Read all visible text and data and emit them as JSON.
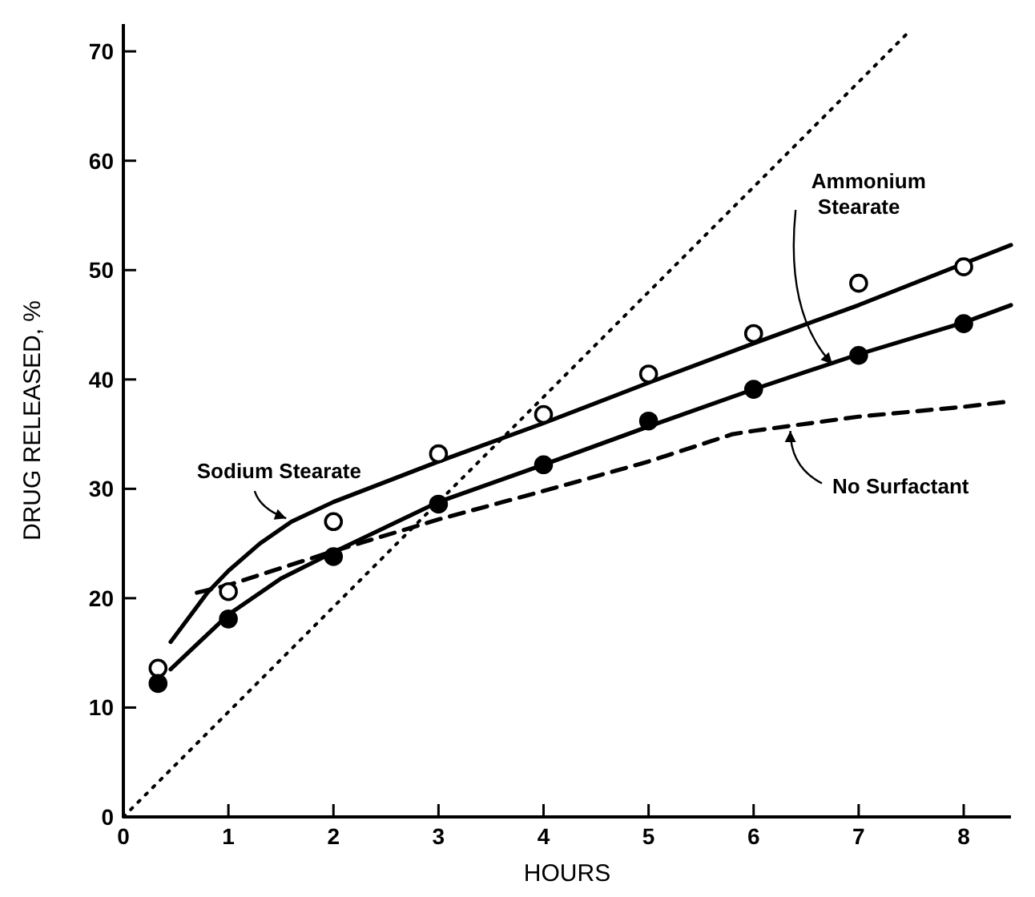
{
  "chart_data": {
    "type": "line",
    "xlabel": "HOURS",
    "ylabel": "DRUG RELEASED, %",
    "xlim": [
      0,
      8.45
    ],
    "ylim": [
      0,
      72.5
    ],
    "xticks": [
      0,
      1,
      2,
      3,
      4,
      5,
      6,
      7,
      8
    ],
    "yticks": [
      0,
      10,
      20,
      30,
      40,
      50,
      60,
      70
    ],
    "grid": false,
    "series": [
      {
        "name": "Sodium Stearate",
        "color": "#000000",
        "line_style": "solid",
        "x": [
          0.45,
          0.8,
          1,
          1.3,
          1.6,
          2,
          3,
          4,
          5,
          6,
          7,
          8,
          8.45
        ],
        "values": [
          16,
          20.5,
          22.5,
          25,
          27,
          28.8,
          32.5,
          36,
          39.7,
          43.3,
          46.8,
          50.6,
          52.3
        ]
      },
      {
        "name": "Ammonium Stearate",
        "color": "#000000",
        "line_style": "solid",
        "x": [
          0.45,
          1,
          1.5,
          2,
          3,
          4,
          5,
          6,
          7,
          8,
          8.45
        ],
        "values": [
          13.5,
          18.5,
          21.8,
          24.2,
          28.8,
          32.2,
          35.7,
          39.1,
          42.3,
          45.2,
          46.8
        ]
      },
      {
        "name": "No Surfactant",
        "color": "#000000",
        "line_style": "dashed",
        "x": [
          0.7,
          1,
          2,
          3,
          4,
          5,
          5.8,
          6,
          7,
          8,
          8.45
        ],
        "values": [
          20.5,
          21.2,
          24.3,
          27.2,
          29.8,
          32.5,
          35,
          35.3,
          36.6,
          37.5,
          38
        ]
      },
      {
        "color": "#000000",
        "line_style": "dotted",
        "x": [
          0,
          7.5
        ],
        "values": [
          0,
          72
        ]
      },
      {
        "type": "scatter",
        "color": "#000000",
        "marker": "circle",
        "x": [
          0.33,
          1,
          2,
          3,
          4,
          5,
          6,
          7,
          8
        ],
        "values": [
          13.6,
          20.6,
          27,
          33.2,
          36.8,
          40.5,
          44.2,
          48.8,
          50.3
        ]
      },
      {
        "type": "scatter",
        "color": "#000000",
        "marker": "circle",
        "x": [
          0.33,
          1,
          2,
          3,
          4,
          5,
          6,
          7,
          8
        ],
        "values": [
          12.2,
          18.1,
          23.8,
          28.6,
          32.2,
          36.2,
          39.1,
          42.2,
          45.1
        ]
      }
    ]
  }
}
